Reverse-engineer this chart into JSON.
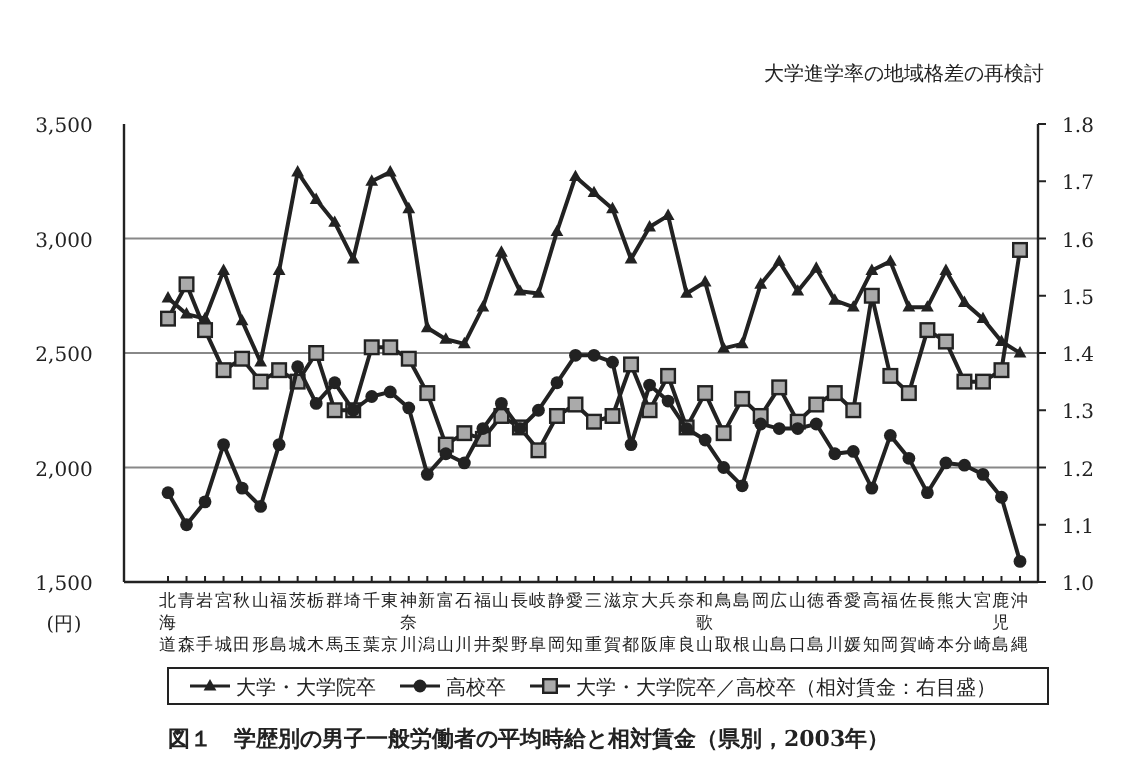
{
  "chart_data": {
    "type": "line",
    "title": "図１　学歴別の男子一般労働者の平均時給と相対賃金（県別，2003年）",
    "annotations": [
      "大学進学率の地域格差の再検討"
    ],
    "ylabel": "(円)",
    "categories": [
      "北海道",
      "青森",
      "岩手",
      "宮城",
      "秋田",
      "山形",
      "福島",
      "茨城",
      "栃木",
      "群馬",
      "埼玉",
      "千葉",
      "東京",
      "神奈川",
      "新潟",
      "富山",
      "石川",
      "福井",
      "山梨",
      "長野",
      "岐阜",
      "静岡",
      "愛知",
      "三重",
      "滋賀",
      "京都",
      "大阪",
      "兵庫",
      "奈良",
      "和歌山",
      "鳥取",
      "島根",
      "岡山",
      "広島",
      "山口",
      "徳島",
      "香川",
      "愛媛",
      "高知",
      "福岡",
      "佐賀",
      "長崎",
      "熊本",
      "大分",
      "宮崎",
      "鹿児島",
      "沖縄"
    ],
    "ylim": [
      1500,
      3500
    ],
    "yticks": [
      {
        "value": 1500,
        "label": "1,500"
      },
      {
        "value": 2000,
        "label": "2,000"
      },
      {
        "value": 2500,
        "label": "2,500"
      },
      {
        "value": 3000,
        "label": "3,000"
      },
      {
        "value": 3500,
        "label": "3,500"
      }
    ],
    "y2lim": [
      1.0,
      1.8
    ],
    "y2ticks": [
      {
        "value": 1.0,
        "label": "1.0"
      },
      {
        "value": 1.1,
        "label": "1.1"
      },
      {
        "value": 1.2,
        "label": "1.2"
      },
      {
        "value": 1.3,
        "label": "1.3"
      },
      {
        "value": 1.4,
        "label": "1.4"
      },
      {
        "value": 1.5,
        "label": "1.5"
      },
      {
        "value": 1.6,
        "label": "1.6"
      },
      {
        "value": 1.7,
        "label": "1.7"
      },
      {
        "value": 1.8,
        "label": "1.8"
      }
    ],
    "grid": "y",
    "legend": "bottom",
    "line_style": "solid",
    "series": [
      {
        "name": "大学・大学院卒",
        "color": "#222222",
        "marker": "triangle",
        "values": [
          2740,
          2670,
          2650,
          2860,
          2640,
          2460,
          2860,
          3290,
          3170,
          3070,
          2910,
          3250,
          3290,
          3130,
          2610,
          2560,
          2540,
          2700,
          2940,
          2770,
          2760,
          3030,
          3270,
          3200,
          3130,
          2910,
          3050,
          3100,
          2760,
          2810,
          2520,
          2540,
          2800,
          2900,
          2770,
          2870,
          2730,
          2700,
          2860,
          2900,
          2700,
          2700,
          2860,
          2720,
          2650,
          2550,
          2500
        ]
      },
      {
        "name": "高校卒",
        "color": "#222222",
        "marker": "circle",
        "values": [
          1890,
          1750,
          1850,
          2100,
          1910,
          1830,
          2100,
          2440,
          2280,
          2370,
          2250,
          2310,
          2330,
          2260,
          1970,
          2060,
          2020,
          2170,
          2280,
          2170,
          2250,
          2370,
          2490,
          2490,
          2460,
          2100,
          2360,
          2290,
          2170,
          2120,
          2000,
          1920,
          2190,
          2170,
          2170,
          2190,
          2060,
          2070,
          1910,
          2140,
          2040,
          1890,
          2020,
          2010,
          1970,
          1870,
          1590
        ]
      },
      {
        "name": "大学・大学院卒／高校卒（相対賃金：右目盛）",
        "color": "#222222",
        "marker": "square",
        "axis": "y2",
        "values": [
          1.46,
          1.52,
          1.44,
          1.37,
          1.39,
          1.35,
          1.37,
          1.35,
          1.4,
          1.3,
          1.3,
          1.41,
          1.41,
          1.39,
          1.33,
          1.24,
          1.26,
          1.25,
          1.29,
          1.27,
          1.23,
          1.29,
          1.31,
          1.28,
          1.29,
          1.38,
          1.3,
          1.36,
          1.27,
          1.33,
          1.26,
          1.32,
          1.29,
          1.34,
          1.28,
          1.31,
          1.33,
          1.3,
          1.5,
          1.36,
          1.33,
          1.44,
          1.42,
          1.35,
          1.35,
          1.37,
          1.58
        ]
      }
    ]
  }
}
